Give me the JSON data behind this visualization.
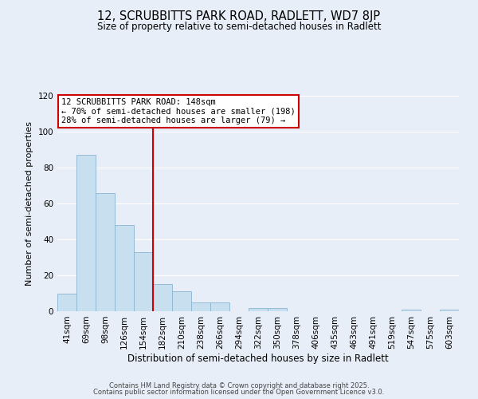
{
  "title": "12, SCRUBBITTS PARK ROAD, RADLETT, WD7 8JP",
  "subtitle": "Size of property relative to semi-detached houses in Radlett",
  "xlabel": "Distribution of semi-detached houses by size in Radlett",
  "ylabel": "Number of semi-detached properties",
  "bin_labels": [
    "41sqm",
    "69sqm",
    "98sqm",
    "126sqm",
    "154sqm",
    "182sqm",
    "210sqm",
    "238sqm",
    "266sqm",
    "294sqm",
    "322sqm",
    "350sqm",
    "378sqm",
    "406sqm",
    "435sqm",
    "463sqm",
    "491sqm",
    "519sqm",
    "547sqm",
    "575sqm",
    "603sqm"
  ],
  "bar_heights": [
    10,
    87,
    66,
    48,
    33,
    15,
    11,
    5,
    5,
    0,
    2,
    2,
    0,
    0,
    0,
    0,
    0,
    0,
    1,
    0,
    1
  ],
  "bar_color": "#c8dff0",
  "bar_edge_color": "#8ab4d0",
  "vline_x": 4.5,
  "vline_color": "#cc0000",
  "ylim": [
    0,
    120
  ],
  "yticks": [
    0,
    20,
    40,
    60,
    80,
    100,
    120
  ],
  "annotation_title": "12 SCRUBBITTS PARK ROAD: 148sqm",
  "annotation_line1": "← 70% of semi-detached houses are smaller (198)",
  "annotation_line2": "28% of semi-detached houses are larger (79) →",
  "annotation_box_color": "#ffffff",
  "annotation_border_color": "#cc0000",
  "bg_color": "#e8eef8",
  "grid_color": "#ffffff",
  "footer1": "Contains HM Land Registry data © Crown copyright and database right 2025.",
  "footer2": "Contains public sector information licensed under the Open Government Licence v3.0.",
  "title_fontsize": 10.5,
  "subtitle_fontsize": 8.5,
  "xlabel_fontsize": 8.5,
  "ylabel_fontsize": 8.0,
  "annotation_fontsize": 7.5,
  "tick_fontsize": 7.5,
  "footer_fontsize": 6.0
}
